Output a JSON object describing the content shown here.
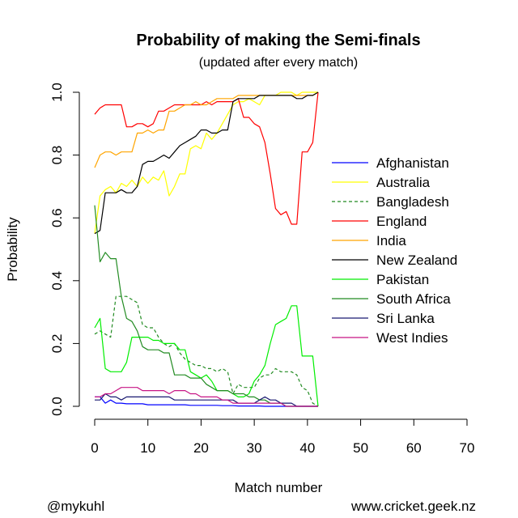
{
  "chart_data": {
    "type": "line",
    "title": "Probability of making the Semi-finals",
    "subtitle": "(updated after every match)",
    "xlabel": "Match number",
    "ylabel": "Probability",
    "xlim": [
      0,
      70
    ],
    "ylim": [
      0,
      1
    ],
    "x_ticks": [
      "0",
      "10",
      "20",
      "30",
      "40",
      "50",
      "60",
      "70"
    ],
    "y_ticks": [
      "0.0",
      "0.2",
      "0.4",
      "0.6",
      "0.8",
      "1.0"
    ],
    "legend_position": "right",
    "series": [
      {
        "name": "Afghanistan",
        "color": "#0000ff",
        "dash": false,
        "values": [
          0.03,
          0.03,
          0.01,
          0.02,
          0.01,
          0.01,
          0.008,
          0.008,
          0.008,
          0.008,
          0.005,
          0.005,
          0.005,
          0.005,
          0.005,
          0.005,
          0.005,
          0.005,
          0.003,
          0.003,
          0.003,
          0.003,
          0.003,
          0.003,
          0.002,
          0.002,
          0.002,
          0.001,
          0.001,
          0.001,
          0.001,
          0.001,
          0.0,
          0.0,
          0.0,
          0.0,
          0.0,
          0.0,
          0.0,
          0.0,
          0.0,
          0.0,
          0.0
        ]
      },
      {
        "name": "Australia",
        "color": "#ffff00",
        "dash": false,
        "values": [
          0.55,
          0.67,
          0.69,
          0.7,
          0.68,
          0.71,
          0.7,
          0.72,
          0.7,
          0.73,
          0.71,
          0.73,
          0.72,
          0.75,
          0.67,
          0.7,
          0.74,
          0.74,
          0.82,
          0.83,
          0.82,
          0.87,
          0.85,
          0.87,
          0.9,
          0.93,
          0.96,
          0.97,
          0.97,
          0.98,
          0.97,
          0.96,
          0.99,
          0.99,
          0.99,
          1.0,
          1.0,
          1.0,
          0.99,
          1.0,
          1.0,
          1.0,
          1.0
        ]
      },
      {
        "name": "Bangladesh",
        "color": "#228b22",
        "dash": true,
        "values": [
          0.23,
          0.24,
          0.23,
          0.22,
          0.35,
          0.35,
          0.35,
          0.34,
          0.33,
          0.26,
          0.25,
          0.25,
          0.22,
          0.2,
          0.19,
          0.2,
          0.17,
          0.15,
          0.14,
          0.13,
          0.13,
          0.12,
          0.12,
          0.11,
          0.12,
          0.11,
          0.04,
          0.07,
          0.06,
          0.06,
          0.06,
          0.09,
          0.1,
          0.1,
          0.12,
          0.11,
          0.11,
          0.11,
          0.1,
          0.06,
          0.05,
          0.01,
          0.0
        ]
      },
      {
        "name": "England",
        "color": "#ff0000",
        "dash": false,
        "values": [
          0.93,
          0.95,
          0.96,
          0.96,
          0.96,
          0.96,
          0.89,
          0.89,
          0.9,
          0.9,
          0.89,
          0.9,
          0.94,
          0.94,
          0.95,
          0.96,
          0.96,
          0.96,
          0.96,
          0.96,
          0.96,
          0.97,
          0.96,
          0.97,
          0.97,
          0.97,
          0.97,
          0.98,
          0.92,
          0.92,
          0.9,
          0.89,
          0.84,
          0.74,
          0.63,
          0.61,
          0.62,
          0.58,
          0.58,
          0.81,
          0.81,
          0.84,
          1.0
        ]
      },
      {
        "name": "India",
        "color": "#ffa500",
        "dash": false,
        "values": [
          0.76,
          0.8,
          0.81,
          0.81,
          0.8,
          0.81,
          0.81,
          0.81,
          0.87,
          0.87,
          0.88,
          0.87,
          0.88,
          0.88,
          0.94,
          0.94,
          0.95,
          0.96,
          0.96,
          0.97,
          0.96,
          0.96,
          0.97,
          0.98,
          0.98,
          0.98,
          0.98,
          0.99,
          0.99,
          0.99,
          0.99,
          0.99,
          0.99,
          0.99,
          0.99,
          0.99,
          0.99,
          0.99,
          0.99,
          0.99,
          0.99,
          0.99,
          1.0
        ]
      },
      {
        "name": "New Zealand",
        "color": "#000000",
        "dash": false,
        "values": [
          0.55,
          0.56,
          0.68,
          0.68,
          0.68,
          0.69,
          0.68,
          0.68,
          0.7,
          0.77,
          0.78,
          0.78,
          0.79,
          0.8,
          0.79,
          0.81,
          0.83,
          0.84,
          0.85,
          0.86,
          0.88,
          0.88,
          0.87,
          0.87,
          0.88,
          0.88,
          0.97,
          0.98,
          0.98,
          0.98,
          0.98,
          0.99,
          0.99,
          0.99,
          0.99,
          0.99,
          0.99,
          0.99,
          0.98,
          0.98,
          0.99,
          0.99,
          1.0
        ]
      },
      {
        "name": "Pakistan",
        "color": "#00ee00",
        "dash": false,
        "values": [
          0.25,
          0.28,
          0.12,
          0.11,
          0.11,
          0.11,
          0.14,
          0.22,
          0.22,
          0.22,
          0.22,
          0.21,
          0.21,
          0.2,
          0.2,
          0.2,
          0.18,
          0.18,
          0.11,
          0.1,
          0.09,
          0.1,
          0.08,
          0.05,
          0.05,
          0.05,
          0.04,
          0.03,
          0.03,
          0.04,
          0.08,
          0.1,
          0.13,
          0.2,
          0.26,
          0.27,
          0.28,
          0.32,
          0.32,
          0.16,
          0.16,
          0.16,
          0.0
        ]
      },
      {
        "name": "South Africa",
        "color": "#228b22",
        "dash": false,
        "values": [
          0.64,
          0.46,
          0.49,
          0.47,
          0.47,
          0.35,
          0.28,
          0.27,
          0.24,
          0.19,
          0.18,
          0.18,
          0.18,
          0.17,
          0.17,
          0.1,
          0.1,
          0.1,
          0.09,
          0.09,
          0.09,
          0.07,
          0.06,
          0.05,
          0.05,
          0.05,
          0.04,
          0.04,
          0.04,
          0.03,
          0.03,
          0.02,
          0.02,
          0.01,
          0.01,
          0.01,
          0.0,
          0.0,
          0.0,
          0.0,
          0.0,
          0.0,
          0.0
        ]
      },
      {
        "name": "Sri Lanka",
        "color": "#191970",
        "dash": false,
        "values": [
          0.02,
          0.02,
          0.04,
          0.03,
          0.03,
          0.02,
          0.03,
          0.03,
          0.03,
          0.03,
          0.03,
          0.03,
          0.03,
          0.03,
          0.03,
          0.02,
          0.02,
          0.02,
          0.02,
          0.02,
          0.02,
          0.02,
          0.02,
          0.02,
          0.02,
          0.02,
          0.02,
          0.01,
          0.01,
          0.01,
          0.01,
          0.02,
          0.03,
          0.02,
          0.02,
          0.01,
          0.01,
          0.01,
          0.0,
          0.0,
          0.0,
          0.0,
          0.0
        ]
      },
      {
        "name": "West Indies",
        "color": "#c71585",
        "dash": false,
        "values": [
          0.03,
          0.03,
          0.04,
          0.04,
          0.05,
          0.06,
          0.06,
          0.06,
          0.06,
          0.05,
          0.05,
          0.05,
          0.05,
          0.05,
          0.04,
          0.05,
          0.05,
          0.05,
          0.04,
          0.04,
          0.03,
          0.03,
          0.03,
          0.03,
          0.02,
          0.02,
          0.01,
          0.01,
          0.01,
          0.01,
          0.01,
          0.01,
          0.01,
          0.01,
          0.01,
          0.01,
          0.0,
          0.0,
          0.0,
          0.0,
          0.0,
          0.0,
          0.0
        ]
      }
    ]
  },
  "credits": {
    "left": "@mykuhl",
    "right": "www.cricket.geek.nz"
  }
}
